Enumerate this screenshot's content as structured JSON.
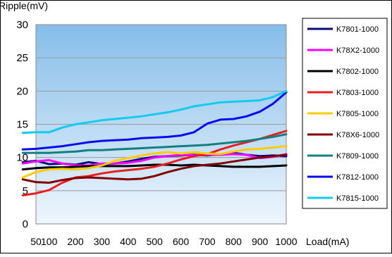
{
  "chart_data": {
    "type": "line",
    "ylabel": "Ripple(mV)",
    "xlabel": "Load(mA)",
    "x": [
      50,
      100,
      200,
      300,
      400,
      500,
      600,
      700,
      800,
      900,
      1000
    ],
    "ylim": [
      0,
      30
    ],
    "yticks": [
      0,
      5,
      10,
      15,
      20,
      25,
      30
    ],
    "grid": true,
    "legend_position": "right",
    "series": [
      {
        "name": "K7801-1000",
        "color": "#0a0a7a",
        "points": [
          [
            0,
            9.3
          ],
          [
            50,
            9.5
          ],
          [
            100,
            9.0
          ],
          [
            150,
            9.1
          ],
          [
            200,
            8.9
          ],
          [
            250,
            9.3
          ],
          [
            300,
            9.0
          ],
          [
            350,
            9.1
          ],
          [
            400,
            9.4
          ],
          [
            450,
            9.8
          ],
          [
            500,
            10.1
          ],
          [
            550,
            10.2
          ],
          [
            600,
            10.3
          ],
          [
            650,
            10.4
          ],
          [
            700,
            10.3
          ],
          [
            750,
            10.5
          ],
          [
            800,
            10.7
          ],
          [
            850,
            10.4
          ],
          [
            900,
            10.2
          ],
          [
            950,
            10.3
          ],
          [
            1000,
            10.2
          ]
        ]
      },
      {
        "name": "K78X2-1000",
        "color": "#ff00ff",
        "points": [
          [
            0,
            9.1
          ],
          [
            50,
            9.4
          ],
          [
            100,
            9.6
          ],
          [
            150,
            9.1
          ],
          [
            200,
            8.8
          ],
          [
            250,
            8.8
          ],
          [
            300,
            9.1
          ],
          [
            350,
            9.1
          ],
          [
            400,
            9.2
          ],
          [
            450,
            9.5
          ],
          [
            500,
            10.0
          ],
          [
            550,
            10.2
          ],
          [
            600,
            10.4
          ],
          [
            650,
            10.3
          ],
          [
            700,
            10.4
          ],
          [
            750,
            10.4
          ],
          [
            800,
            10.5
          ],
          [
            850,
            10.4
          ],
          [
            900,
            9.9
          ],
          [
            950,
            10.1
          ],
          [
            1000,
            10.5
          ]
        ]
      },
      {
        "name": "K7802-1000",
        "color": "#000000",
        "points": [
          [
            0,
            8.2
          ],
          [
            50,
            8.4
          ],
          [
            100,
            8.5
          ],
          [
            150,
            8.5
          ],
          [
            200,
            8.6
          ],
          [
            250,
            8.7
          ],
          [
            300,
            8.7
          ],
          [
            350,
            8.7
          ],
          [
            400,
            8.7
          ],
          [
            450,
            8.8
          ],
          [
            500,
            8.9
          ],
          [
            550,
            8.9
          ],
          [
            600,
            8.8
          ],
          [
            650,
            8.9
          ],
          [
            700,
            8.8
          ],
          [
            750,
            8.7
          ],
          [
            800,
            8.6
          ],
          [
            850,
            8.6
          ],
          [
            900,
            8.6
          ],
          [
            950,
            8.7
          ],
          [
            1000,
            8.8
          ]
        ]
      },
      {
        "name": "K7803-1000",
        "color": "#ee1c1c",
        "points": [
          [
            0,
            4.3
          ],
          [
            50,
            4.6
          ],
          [
            100,
            5.1
          ],
          [
            150,
            6.2
          ],
          [
            200,
            7.0
          ],
          [
            250,
            7.2
          ],
          [
            300,
            7.6
          ],
          [
            350,
            7.9
          ],
          [
            400,
            8.1
          ],
          [
            450,
            8.3
          ],
          [
            500,
            8.6
          ],
          [
            550,
            9.1
          ],
          [
            600,
            9.7
          ],
          [
            650,
            10.2
          ],
          [
            700,
            10.5
          ],
          [
            750,
            11.2
          ],
          [
            800,
            11.8
          ],
          [
            850,
            12.3
          ],
          [
            900,
            12.8
          ],
          [
            950,
            13.4
          ],
          [
            1000,
            14.0
          ]
        ]
      },
      {
        "name": "K7805-1000",
        "color": "#ffcc00",
        "points": [
          [
            0,
            7.0
          ],
          [
            50,
            7.8
          ],
          [
            100,
            8.2
          ],
          [
            150,
            8.3
          ],
          [
            200,
            8.2
          ],
          [
            250,
            8.4
          ],
          [
            300,
            8.8
          ],
          [
            350,
            9.5
          ],
          [
            400,
            9.9
          ],
          [
            450,
            10.3
          ],
          [
            500,
            10.6
          ],
          [
            550,
            10.8
          ],
          [
            600,
            10.6
          ],
          [
            650,
            10.8
          ],
          [
            700,
            10.6
          ],
          [
            750,
            10.5
          ],
          [
            800,
            10.9
          ],
          [
            850,
            11.2
          ],
          [
            900,
            11.3
          ],
          [
            950,
            11.5
          ],
          [
            1000,
            11.7
          ]
        ]
      },
      {
        "name": "K78X6-1000",
        "color": "#800000",
        "points": [
          [
            0,
            6.7
          ],
          [
            50,
            6.3
          ],
          [
            100,
            6.2
          ],
          [
            150,
            6.6
          ],
          [
            200,
            6.9
          ],
          [
            250,
            7.0
          ],
          [
            300,
            6.9
          ],
          [
            350,
            6.8
          ],
          [
            400,
            6.7
          ],
          [
            450,
            6.8
          ],
          [
            500,
            7.2
          ],
          [
            550,
            7.8
          ],
          [
            600,
            8.3
          ],
          [
            650,
            8.7
          ],
          [
            700,
            8.9
          ],
          [
            750,
            9.1
          ],
          [
            800,
            9.4
          ],
          [
            850,
            9.7
          ],
          [
            900,
            10.0
          ],
          [
            950,
            10.2
          ],
          [
            1000,
            10.4
          ]
        ]
      },
      {
        "name": "K7809-1000",
        "color": "#138080",
        "points": [
          [
            0,
            10.7
          ],
          [
            50,
            10.7
          ],
          [
            100,
            10.7
          ],
          [
            150,
            10.8
          ],
          [
            200,
            10.9
          ],
          [
            250,
            11.1
          ],
          [
            300,
            11.1
          ],
          [
            350,
            11.2
          ],
          [
            400,
            11.3
          ],
          [
            450,
            11.4
          ],
          [
            500,
            11.5
          ],
          [
            550,
            11.6
          ],
          [
            600,
            11.7
          ],
          [
            650,
            11.8
          ],
          [
            700,
            11.9
          ],
          [
            750,
            12.1
          ],
          [
            800,
            12.3
          ],
          [
            850,
            12.5
          ],
          [
            900,
            12.8
          ],
          [
            950,
            13.1
          ],
          [
            1000,
            13.5
          ]
        ]
      },
      {
        "name": "K7812-1000",
        "color": "#0a0aee",
        "points": [
          [
            0,
            11.2
          ],
          [
            50,
            11.3
          ],
          [
            100,
            11.5
          ],
          [
            150,
            11.7
          ],
          [
            200,
            12.0
          ],
          [
            250,
            12.3
          ],
          [
            300,
            12.5
          ],
          [
            350,
            12.6
          ],
          [
            400,
            12.7
          ],
          [
            450,
            12.9
          ],
          [
            500,
            13.0
          ],
          [
            550,
            13.1
          ],
          [
            600,
            13.3
          ],
          [
            650,
            13.8
          ],
          [
            700,
            15.1
          ],
          [
            750,
            15.7
          ],
          [
            800,
            15.8
          ],
          [
            850,
            16.2
          ],
          [
            900,
            16.9
          ],
          [
            950,
            18.1
          ],
          [
            1000,
            19.8
          ]
        ]
      },
      {
        "name": "K7815-1000",
        "color": "#11ccee",
        "points": [
          [
            0,
            13.7
          ],
          [
            50,
            13.8
          ],
          [
            100,
            13.8
          ],
          [
            150,
            14.5
          ],
          [
            200,
            15.0
          ],
          [
            250,
            15.3
          ],
          [
            300,
            15.6
          ],
          [
            350,
            15.8
          ],
          [
            400,
            16.0
          ],
          [
            450,
            16.2
          ],
          [
            500,
            16.5
          ],
          [
            550,
            16.8
          ],
          [
            600,
            17.2
          ],
          [
            650,
            17.7
          ],
          [
            700,
            18.0
          ],
          [
            750,
            18.3
          ],
          [
            800,
            18.4
          ],
          [
            850,
            18.5
          ],
          [
            900,
            18.6
          ],
          [
            950,
            19.1
          ],
          [
            1000,
            20.0
          ]
        ]
      }
    ]
  }
}
